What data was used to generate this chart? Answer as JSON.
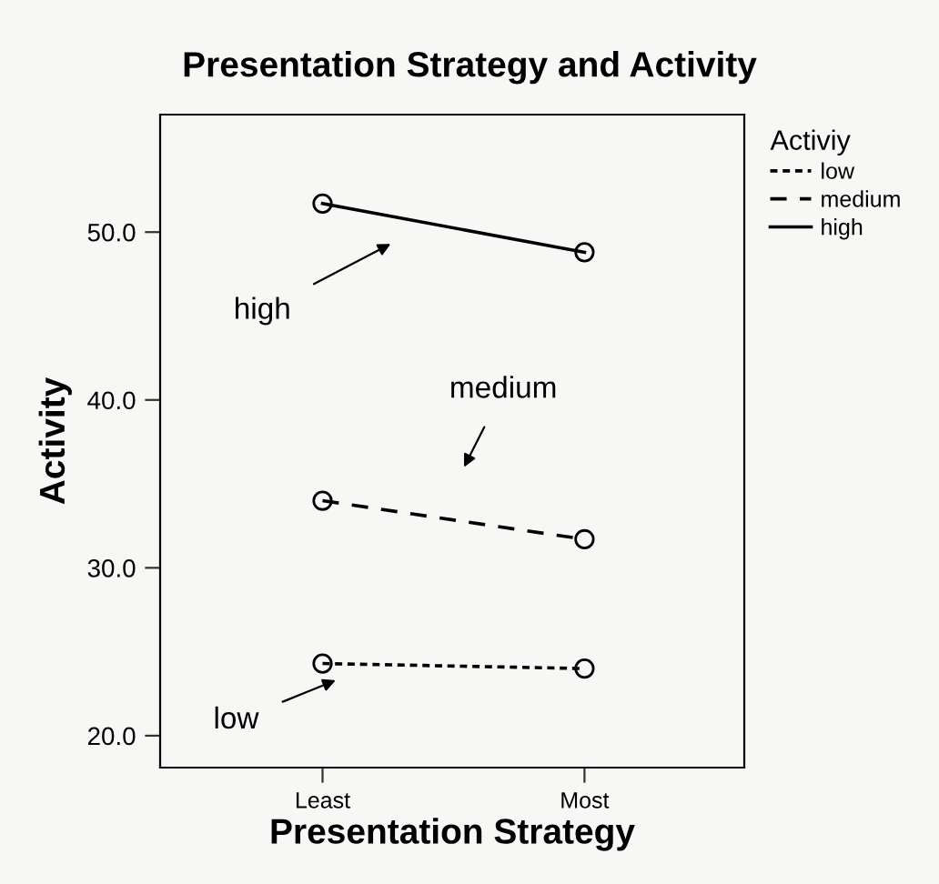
{
  "chart_data": {
    "type": "line",
    "title": "Presentation Strategy and Activity",
    "xlabel": "Presentation Strategy",
    "ylabel": "Activity",
    "legend_title": "Activiy",
    "legend": "right",
    "grid": false,
    "marker": "circle",
    "categories": [
      "Least",
      "Most"
    ],
    "ylim": [
      18.1,
      57.0
    ],
    "yticks": [
      {
        "value": 20,
        "label": "20.0"
      },
      {
        "value": 30,
        "label": "30.0"
      },
      {
        "value": 40,
        "label": "40.0"
      },
      {
        "value": 50,
        "label": "50.0"
      }
    ],
    "series": [
      {
        "name": "low",
        "color": "#000000",
        "line_style": "dotted",
        "values": [
          24.3,
          24.0
        ]
      },
      {
        "name": "medium",
        "color": "#000000",
        "line_style": "dashed",
        "values": [
          34.0,
          31.7
        ]
      },
      {
        "name": "high",
        "color": "#000000",
        "line_style": "solid",
        "values": [
          51.7,
          48.8
        ]
      }
    ],
    "annotations": [
      "low",
      "medium",
      "high"
    ]
  }
}
